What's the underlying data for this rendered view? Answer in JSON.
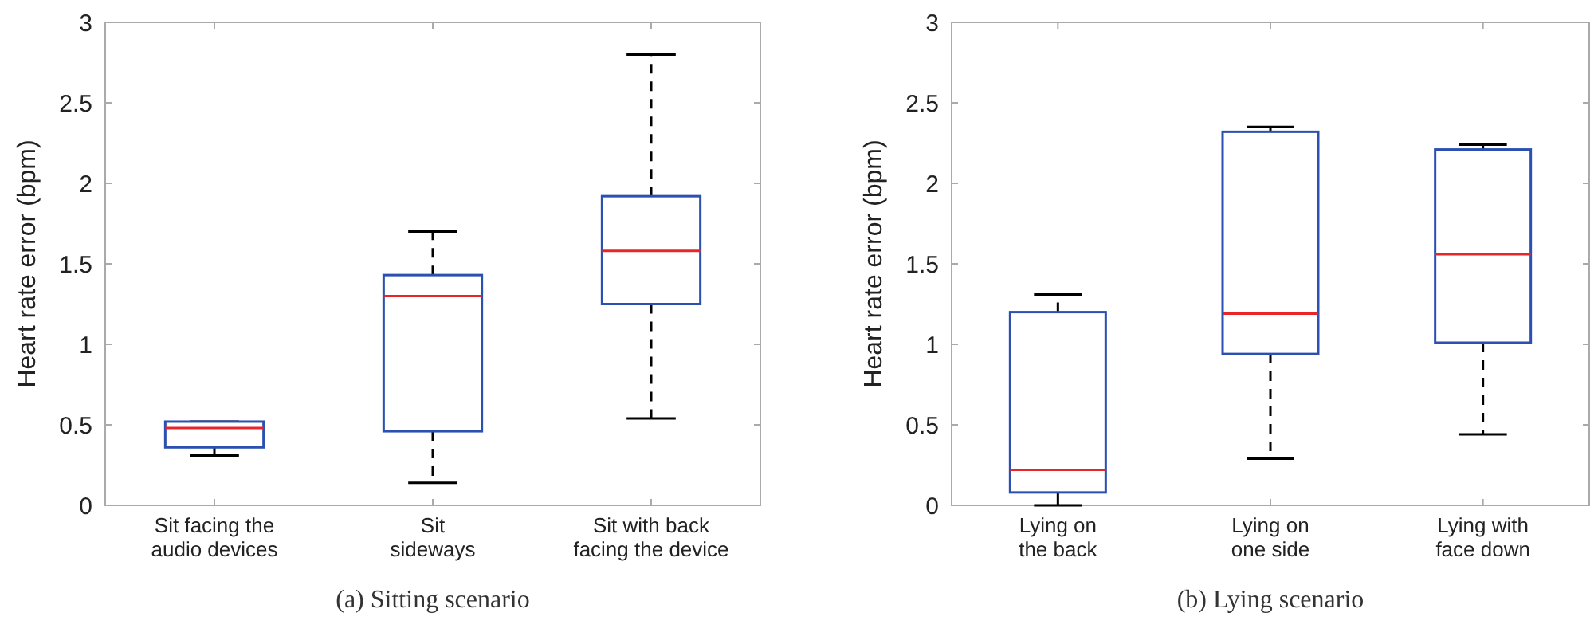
{
  "chart_data": [
    {
      "type": "box",
      "title": "(a) Sitting scenario",
      "ylabel": "Heart rate error (bpm)",
      "categories": [
        "Sit facing the\naudio devices",
        "Sit\nsideways",
        "Sit with back\nfacing the device"
      ],
      "ylim": [
        0,
        3
      ],
      "yticks": [
        0,
        0.5,
        1,
        1.5,
        2,
        2.5,
        3
      ],
      "series": [
        {
          "color": "#2b50b0",
          "boxes": [
            {
              "low": 0.31,
              "q1": 0.36,
              "median": 0.48,
              "q3": 0.52,
              "high": 0.52
            },
            {
              "low": 0.14,
              "q1": 0.46,
              "median": 1.3,
              "q3": 1.43,
              "high": 1.7
            },
            {
              "low": 0.54,
              "q1": 1.25,
              "median": 1.58,
              "q3": 1.92,
              "high": 2.8
            }
          ]
        }
      ]
    },
    {
      "type": "box",
      "title": "(b) Lying scenario",
      "ylabel": "Heart rate error (bpm)",
      "categories": [
        "Lying on\nthe back",
        "Lying on\none side",
        "Lying with\nface down"
      ],
      "ylim": [
        0,
        3
      ],
      "yticks": [
        0,
        0.5,
        1,
        1.5,
        2,
        2.5,
        3
      ],
      "series": [
        {
          "color": "#2b50b0",
          "boxes": [
            {
              "low": 0,
              "q1": 0.08,
              "median": 0.22,
              "q3": 1.2,
              "high": 1.31
            },
            {
              "low": 0.29,
              "q1": 0.94,
              "median": 1.19,
              "q3": 2.32,
              "high": 2.35
            },
            {
              "low": 0.44,
              "q1": 1.01,
              "median": 1.56,
              "q3": 2.21,
              "high": 2.24
            }
          ]
        }
      ]
    }
  ]
}
